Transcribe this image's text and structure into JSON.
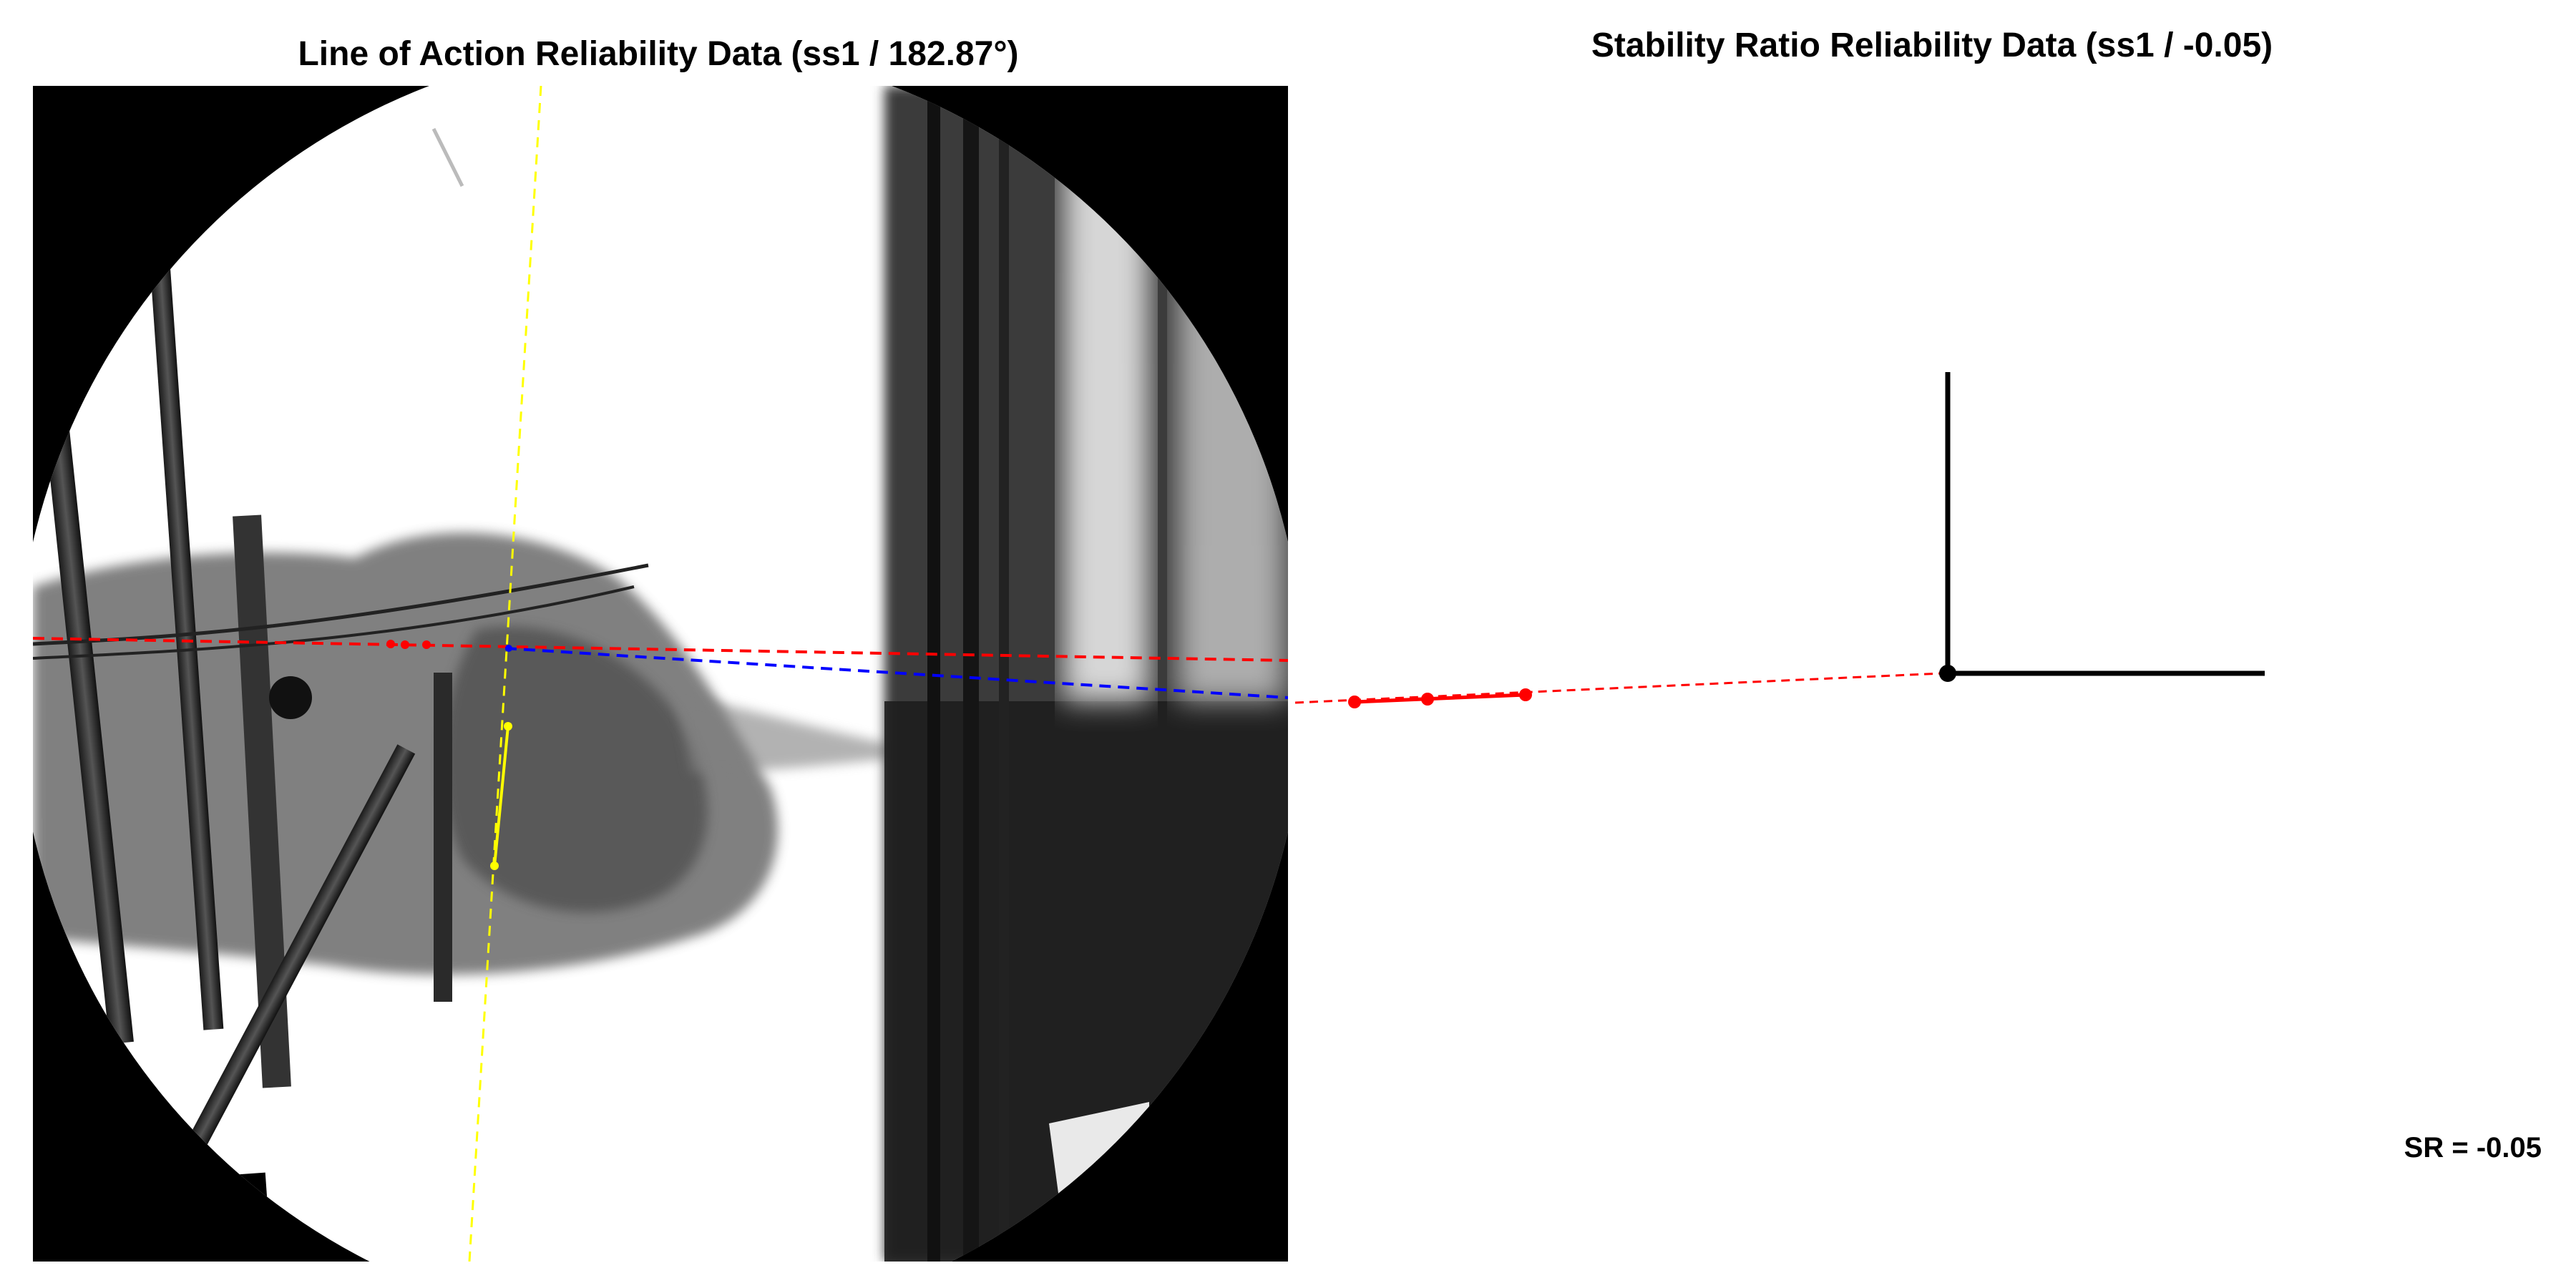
{
  "left_panel": {
    "title": "Line of Action Reliability Data (ss1 / 182.87°)"
  },
  "right_panel": {
    "title": "Stability Ratio Reliability Data (ss1 / -0.05)",
    "sr_label": "SR = -0.05"
  },
  "colors": {
    "background": "#ffffff",
    "red_line": "#ff0000",
    "blue_line": "#0000ff",
    "yellow_line": "#ffff00",
    "axes": "#000000"
  }
}
